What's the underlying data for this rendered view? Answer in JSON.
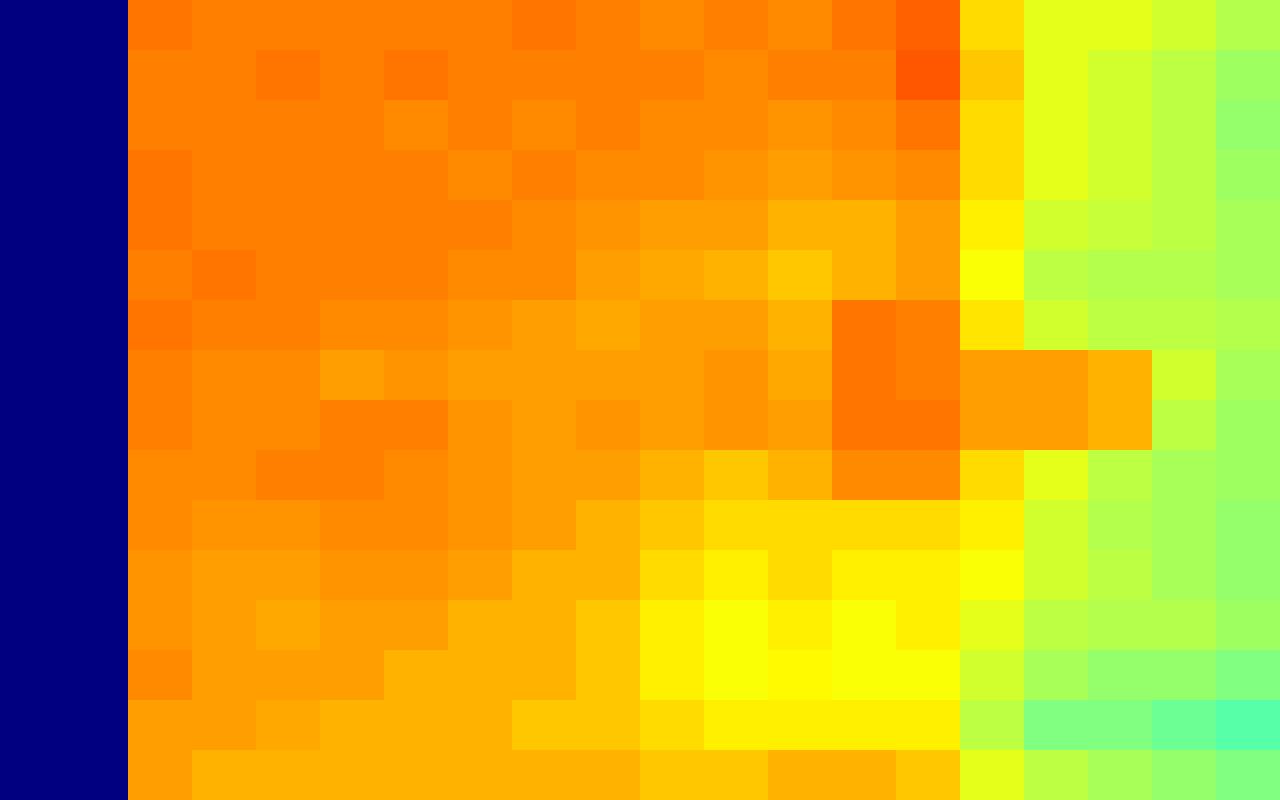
{
  "chart_data": {
    "type": "heatmap",
    "tick_labels": false,
    "zlim": [
      0,
      1
    ],
    "cells": [
      [
        0,
        0,
        0.76,
        0.75,
        0.75,
        0.75,
        0.75,
        0.75,
        0.76,
        0.75,
        0.74,
        0.75,
        0.74,
        0.76,
        0.78,
        0.66,
        0.6,
        0.6,
        0.58,
        0.55
      ],
      [
        0,
        0,
        0.75,
        0.75,
        0.76,
        0.75,
        0.76,
        0.75,
        0.75,
        0.75,
        0.75,
        0.74,
        0.75,
        0.75,
        0.79,
        0.68,
        0.6,
        0.58,
        0.56,
        0.53
      ],
      [
        0,
        0,
        0.75,
        0.75,
        0.75,
        0.75,
        0.74,
        0.75,
        0.74,
        0.75,
        0.74,
        0.74,
        0.73,
        0.74,
        0.76,
        0.66,
        0.6,
        0.58,
        0.56,
        0.52
      ],
      [
        0,
        0,
        0.76,
        0.75,
        0.75,
        0.75,
        0.75,
        0.74,
        0.75,
        0.74,
        0.74,
        0.73,
        0.72,
        0.73,
        0.74,
        0.66,
        0.6,
        0.58,
        0.56,
        0.53
      ],
      [
        0,
        0,
        0.76,
        0.75,
        0.75,
        0.75,
        0.75,
        0.75,
        0.74,
        0.73,
        0.72,
        0.72,
        0.7,
        0.7,
        0.72,
        0.64,
        0.58,
        0.57,
        0.56,
        0.54
      ],
      [
        0,
        0,
        0.75,
        0.76,
        0.75,
        0.75,
        0.75,
        0.74,
        0.74,
        0.72,
        0.71,
        0.7,
        0.68,
        0.7,
        0.72,
        0.62,
        0.56,
        0.55,
        0.55,
        0.54
      ],
      [
        0,
        0,
        0.76,
        0.75,
        0.75,
        0.74,
        0.74,
        0.73,
        0.72,
        0.71,
        0.72,
        0.72,
        0.7,
        0.76,
        0.75,
        0.65,
        0.58,
        0.56,
        0.56,
        0.55
      ],
      [
        0,
        0,
        0.75,
        0.74,
        0.74,
        0.72,
        0.73,
        0.72,
        0.72,
        0.72,
        0.72,
        0.73,
        0.71,
        0.76,
        0.75,
        0.72,
        0.72,
        0.7,
        0.58,
        0.54
      ],
      [
        0,
        0,
        0.75,
        0.74,
        0.74,
        0.75,
        0.75,
        0.73,
        0.72,
        0.73,
        0.72,
        0.73,
        0.72,
        0.76,
        0.76,
        0.72,
        0.72,
        0.7,
        0.56,
        0.53
      ],
      [
        0,
        0,
        0.74,
        0.74,
        0.75,
        0.75,
        0.74,
        0.73,
        0.72,
        0.72,
        0.7,
        0.68,
        0.7,
        0.74,
        0.74,
        0.66,
        0.6,
        0.56,
        0.54,
        0.53
      ],
      [
        0,
        0,
        0.74,
        0.73,
        0.73,
        0.74,
        0.74,
        0.73,
        0.72,
        0.7,
        0.68,
        0.66,
        0.66,
        0.66,
        0.66,
        0.64,
        0.58,
        0.55,
        0.54,
        0.52
      ],
      [
        0,
        0,
        0.73,
        0.72,
        0.72,
        0.73,
        0.73,
        0.72,
        0.7,
        0.7,
        0.66,
        0.64,
        0.66,
        0.64,
        0.64,
        0.62,
        0.58,
        0.56,
        0.54,
        0.52
      ],
      [
        0,
        0,
        0.73,
        0.72,
        0.71,
        0.72,
        0.72,
        0.7,
        0.7,
        0.68,
        0.64,
        0.62,
        0.64,
        0.62,
        0.64,
        0.6,
        0.56,
        0.55,
        0.55,
        0.53
      ],
      [
        0,
        0,
        0.74,
        0.72,
        0.72,
        0.72,
        0.7,
        0.7,
        0.7,
        0.68,
        0.64,
        0.62,
        0.63,
        0.62,
        0.62,
        0.58,
        0.54,
        0.52,
        0.52,
        0.5
      ],
      [
        0,
        0,
        0.72,
        0.72,
        0.71,
        0.7,
        0.7,
        0.7,
        0.68,
        0.68,
        0.66,
        0.64,
        0.64,
        0.64,
        0.64,
        0.56,
        0.5,
        0.5,
        0.48,
        0.46
      ],
      [
        0,
        0,
        0.72,
        0.7,
        0.7,
        0.7,
        0.7,
        0.7,
        0.7,
        0.7,
        0.68,
        0.68,
        0.7,
        0.7,
        0.68,
        0.6,
        0.56,
        0.54,
        0.52,
        0.5
      ]
    ]
  }
}
